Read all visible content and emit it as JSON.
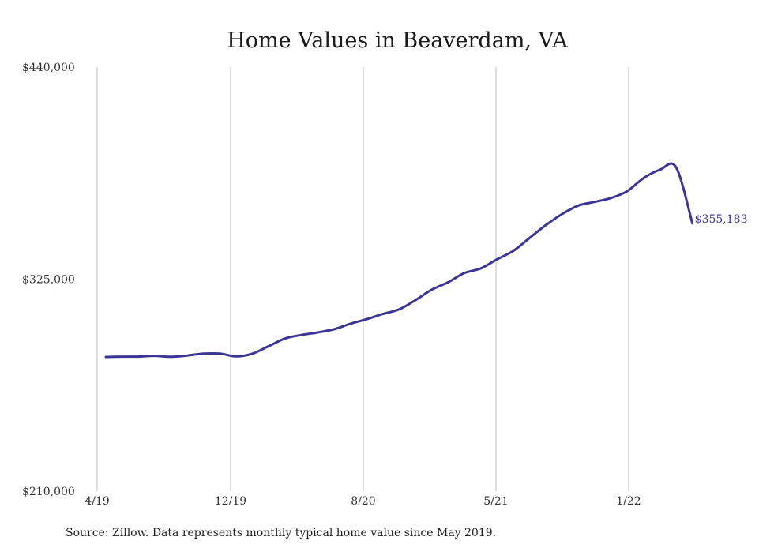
{
  "chart_data": {
    "type": "line",
    "title": "Home Values in Beaverdam, VA",
    "xlabel": "",
    "ylabel": "",
    "ylim": [
      210000,
      440000
    ],
    "y_ticks": [
      {
        "value": 440000,
        "label": "$440,000"
      },
      {
        "value": 325000,
        "label": "$325,000"
      },
      {
        "value": 210000,
        "label": "$210,000"
      }
    ],
    "x_ticks": [
      "4/19",
      "12/19",
      "8/20",
      "5/21",
      "1/22"
    ],
    "x": [
      "5/19",
      "6/19",
      "7/19",
      "8/19",
      "9/19",
      "10/19",
      "11/19",
      "12/19",
      "1/20",
      "2/20",
      "3/20",
      "4/20",
      "5/20",
      "6/20",
      "7/20",
      "8/20",
      "9/20",
      "10/20",
      "11/20",
      "12/20",
      "1/21",
      "2/21",
      "3/21",
      "4/21",
      "5/21",
      "6/21",
      "7/21",
      "8/21",
      "9/21",
      "10/21",
      "11/21",
      "12/21",
      "1/22",
      "2/22",
      "3/22",
      "4/22",
      "5/22"
    ],
    "series": [
      {
        "values": [
          282800,
          283000,
          283000,
          283400,
          282900,
          283600,
          284600,
          284600,
          283100,
          284600,
          288700,
          292800,
          294700,
          296100,
          297800,
          300800,
          303300,
          306100,
          308600,
          313600,
          319300,
          323300,
          328300,
          330800,
          335700,
          340300,
          347300,
          354300,
          360300,
          364900,
          366900,
          369000,
          372700,
          379800,
          384300,
          385700,
          355183
        ],
        "end_label": "$355,183",
        "color": "#3b3596"
      }
    ],
    "grid": "vertical",
    "legend": "none"
  },
  "source_note": "Source: Zillow. Data represents monthly typical home value since May 2019."
}
